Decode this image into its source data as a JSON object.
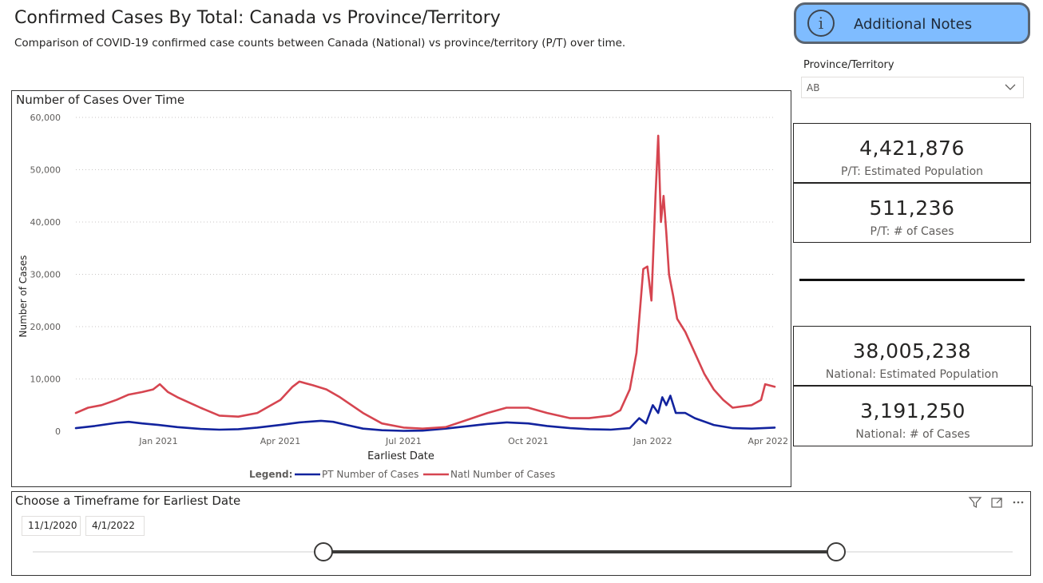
{
  "header": {
    "title": "Confirmed Cases By Total: Canada vs Province/Territory",
    "subtitle": "Comparison of COVID-19 confirmed case counts between Canada (National) vs province/territory (P/T) over time."
  },
  "notes_button": {
    "label": "Additional Notes",
    "icon": "i",
    "bg_color": "#7fbcff"
  },
  "filter": {
    "label": "Province/Territory",
    "selected": "AB"
  },
  "cards": {
    "pt_population": {
      "value": "4,421,876",
      "label": "P/T: Estimated Population"
    },
    "pt_cases": {
      "value": "511,236",
      "label": "P/T: # of Cases"
    },
    "national_population": {
      "value": "38,005,238",
      "label": "National: Estimated Population"
    },
    "national_cases": {
      "value": "3,191,250",
      "label": "National: # of Cases"
    }
  },
  "slicer": {
    "title": "Choose a Timeframe for Earliest Date",
    "start": "11/1/2020",
    "end": "4/1/2022"
  },
  "chart_data": {
    "type": "line",
    "title": "Number of Cases Over Time",
    "xlabel": "Earliest Date",
    "ylabel": "Number of Cases",
    "ylim": [
      0,
      60000
    ],
    "xlim": [
      "2020-11-01",
      "2022-04-01"
    ],
    "x_ticks": [
      {
        "date": "2021-01-01",
        "label": "Jan 2021"
      },
      {
        "date": "2021-04-01",
        "label": "Apr 2021"
      },
      {
        "date": "2021-07-01",
        "label": "Jul 2021"
      },
      {
        "date": "2021-10-01",
        "label": "Oct 2021"
      },
      {
        "date": "2022-01-01",
        "label": "Jan 2022"
      },
      {
        "date": "2022-04-01",
        "label": "Apr 2022"
      }
    ],
    "y_ticks": [
      {
        "value": 0,
        "label": "0"
      },
      {
        "value": 10000,
        "label": "10,000"
      },
      {
        "value": 20000,
        "label": "20,000"
      },
      {
        "value": 30000,
        "label": "30,000"
      },
      {
        "value": 40000,
        "label": "40,000"
      },
      {
        "value": 50000,
        "label": "50,000"
      },
      {
        "value": 60000,
        "label": "60,000"
      }
    ],
    "grid": "horizontal dotted",
    "legend_position": "bottom",
    "legend_title": "Legend:",
    "series": [
      {
        "name": "PT Number of Cases",
        "color": "#12239e",
        "points": [
          [
            "2020-11-01",
            600
          ],
          [
            "2020-11-15",
            1000
          ],
          [
            "2020-12-01",
            1600
          ],
          [
            "2020-12-10",
            1800
          ],
          [
            "2020-12-20",
            1500
          ],
          [
            "2021-01-01",
            1200
          ],
          [
            "2021-01-15",
            800
          ],
          [
            "2021-02-01",
            450
          ],
          [
            "2021-02-15",
            300
          ],
          [
            "2021-03-01",
            400
          ],
          [
            "2021-03-15",
            700
          ],
          [
            "2021-04-01",
            1200
          ],
          [
            "2021-04-15",
            1700
          ],
          [
            "2021-05-01",
            2000
          ],
          [
            "2021-05-10",
            1800
          ],
          [
            "2021-05-20",
            1200
          ],
          [
            "2021-06-01",
            500
          ],
          [
            "2021-06-15",
            200
          ],
          [
            "2021-07-01",
            80
          ],
          [
            "2021-07-15",
            120
          ],
          [
            "2021-08-01",
            500
          ],
          [
            "2021-08-15",
            900
          ],
          [
            "2021-09-01",
            1400
          ],
          [
            "2021-09-15",
            1700
          ],
          [
            "2021-10-01",
            1500
          ],
          [
            "2021-10-15",
            1000
          ],
          [
            "2021-11-01",
            600
          ],
          [
            "2021-11-15",
            400
          ],
          [
            "2021-12-01",
            300
          ],
          [
            "2021-12-15",
            600
          ],
          [
            "2021-12-22",
            2500
          ],
          [
            "2021-12-27",
            1500
          ],
          [
            "2022-01-01",
            5000
          ],
          [
            "2022-01-05",
            3500
          ],
          [
            "2022-01-08",
            6500
          ],
          [
            "2022-01-11",
            5000
          ],
          [
            "2022-01-14",
            6800
          ],
          [
            "2022-01-18",
            3500
          ],
          [
            "2022-01-25",
            3500
          ],
          [
            "2022-02-01",
            2500
          ],
          [
            "2022-02-15",
            1200
          ],
          [
            "2022-03-01",
            600
          ],
          [
            "2022-03-15",
            500
          ],
          [
            "2022-04-01",
            700
          ]
        ]
      },
      {
        "name": "Natl Number of Cases",
        "color": "#d64550",
        "points": [
          [
            "2020-11-01",
            3500
          ],
          [
            "2020-11-10",
            4500
          ],
          [
            "2020-11-20",
            5000
          ],
          [
            "2020-12-01",
            6000
          ],
          [
            "2020-12-10",
            7000
          ],
          [
            "2020-12-20",
            7500
          ],
          [
            "2020-12-28",
            8000
          ],
          [
            "2021-01-02",
            9000
          ],
          [
            "2021-01-08",
            7500
          ],
          [
            "2021-01-15",
            6500
          ],
          [
            "2021-02-01",
            4500
          ],
          [
            "2021-02-15",
            3000
          ],
          [
            "2021-03-01",
            2800
          ],
          [
            "2021-03-15",
            3500
          ],
          [
            "2021-04-01",
            6000
          ],
          [
            "2021-04-10",
            8500
          ],
          [
            "2021-04-15",
            9500
          ],
          [
            "2021-04-25",
            8800
          ],
          [
            "2021-05-05",
            8000
          ],
          [
            "2021-05-15",
            6500
          ],
          [
            "2021-06-01",
            3500
          ],
          [
            "2021-06-15",
            1500
          ],
          [
            "2021-07-01",
            700
          ],
          [
            "2021-07-15",
            500
          ],
          [
            "2021-08-01",
            800
          ],
          [
            "2021-08-15",
            2000
          ],
          [
            "2021-09-01",
            3500
          ],
          [
            "2021-09-15",
            4500
          ],
          [
            "2021-10-01",
            4500
          ],
          [
            "2021-10-15",
            3500
          ],
          [
            "2021-11-01",
            2500
          ],
          [
            "2021-11-15",
            2500
          ],
          [
            "2021-12-01",
            3000
          ],
          [
            "2021-12-08",
            4000
          ],
          [
            "2021-12-15",
            8000
          ],
          [
            "2021-12-20",
            15000
          ],
          [
            "2021-12-25",
            31000
          ],
          [
            "2021-12-28",
            31500
          ],
          [
            "2021-12-31",
            25000
          ],
          [
            "2022-01-03",
            45000
          ],
          [
            "2022-01-05",
            56500
          ],
          [
            "2022-01-07",
            40000
          ],
          [
            "2022-01-09",
            45000
          ],
          [
            "2022-01-11",
            38000
          ],
          [
            "2022-01-13",
            30000
          ],
          [
            "2022-01-16",
            26000
          ],
          [
            "2022-01-19",
            21500
          ],
          [
            "2022-01-25",
            19000
          ],
          [
            "2022-02-01",
            15000
          ],
          [
            "2022-02-08",
            11000
          ],
          [
            "2022-02-15",
            8000
          ],
          [
            "2022-02-22",
            6000
          ],
          [
            "2022-03-01",
            4500
          ],
          [
            "2022-03-15",
            5000
          ],
          [
            "2022-03-22",
            6000
          ],
          [
            "2022-03-25",
            9000
          ],
          [
            "2022-04-01",
            8500
          ]
        ]
      }
    ]
  }
}
